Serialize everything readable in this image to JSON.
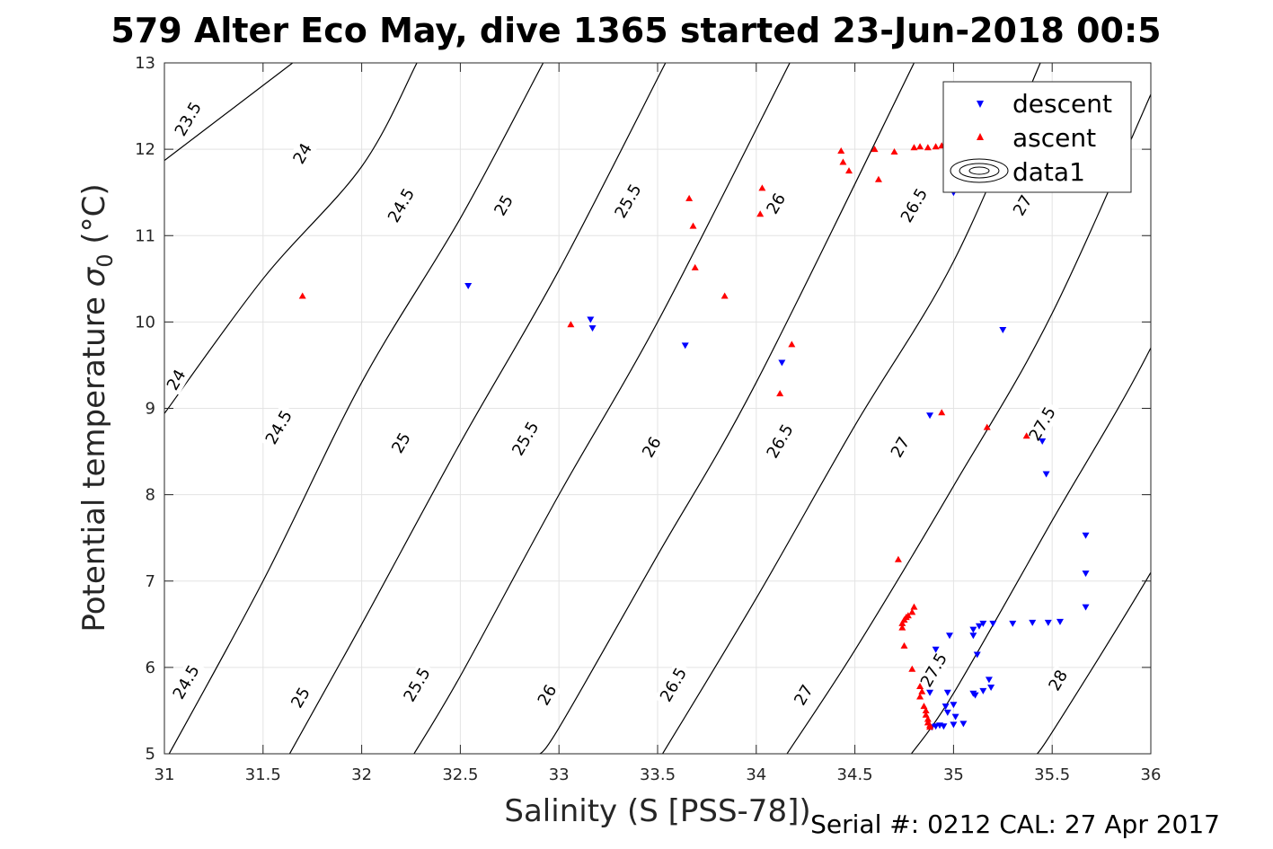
{
  "title": "579 Alter Eco May, dive 1365 started 23-Jun-2018 00:5",
  "footer": "Serial #: 0212  CAL: 27 Apr 2017",
  "chart_data": {
    "type": "scatter",
    "xlabel": "Salinity (S [PSS-78])",
    "ylabel_prefix": "Potential temperature ",
    "ylabel_symbol": "σ",
    "ylabel_subscript": "0",
    "ylabel_suffix": " (°C)",
    "xlim": [
      31,
      36
    ],
    "ylim": [
      5,
      13
    ],
    "xticks": [
      "31",
      "31.5",
      "32",
      "32.5",
      "33",
      "33.5",
      "34",
      "34.5",
      "35",
      "35.5",
      "36"
    ],
    "yticks": [
      "5",
      "6",
      "7",
      "8",
      "9",
      "10",
      "11",
      "12",
      "13"
    ],
    "grid": true,
    "legend_position": "top-right",
    "legend": [
      "descent",
      "ascent",
      "data1"
    ],
    "series": [
      {
        "name": "descent",
        "marker": "triangle-down",
        "color": "#0000ff",
        "points": [
          [
            32.54,
            10.42
          ],
          [
            33.16,
            10.03
          ],
          [
            33.17,
            9.93
          ],
          [
            33.64,
            9.73
          ],
          [
            34.13,
            9.53
          ],
          [
            35.25,
            9.91
          ],
          [
            34.88,
            8.92
          ],
          [
            35.45,
            8.62
          ],
          [
            35.47,
            8.24
          ],
          [
            35.67,
            7.53
          ],
          [
            35.67,
            7.09
          ],
          [
            35.67,
            6.7
          ],
          [
            35.0,
            11.5
          ],
          [
            35.4,
            6.52
          ],
          [
            35.48,
            6.52
          ],
          [
            35.54,
            6.53
          ],
          [
            35.2,
            6.51
          ],
          [
            35.3,
            6.51
          ],
          [
            35.15,
            6.51
          ],
          [
            35.13,
            6.48
          ],
          [
            35.1,
            6.44
          ],
          [
            35.1,
            6.37
          ],
          [
            34.98,
            6.37
          ],
          [
            35.12,
            6.15
          ],
          [
            34.91,
            6.21
          ],
          [
            35.18,
            5.86
          ],
          [
            35.19,
            5.77
          ],
          [
            35.15,
            5.73
          ],
          [
            35.1,
            5.7
          ],
          [
            35.11,
            5.68
          ],
          [
            34.97,
            5.71
          ],
          [
            34.88,
            5.71
          ],
          [
            35.0,
            5.57
          ],
          [
            34.97,
            5.48
          ],
          [
            35.01,
            5.43
          ],
          [
            34.96,
            5.55
          ],
          [
            35.05,
            5.35
          ],
          [
            35.0,
            5.34
          ],
          [
            34.93,
            5.33
          ],
          [
            34.95,
            5.32
          ],
          [
            34.89,
            5.31
          ],
          [
            34.91,
            5.32
          ]
        ]
      },
      {
        "name": "ascent",
        "marker": "triangle-up",
        "color": "#ff0000",
        "points": [
          [
            31.7,
            10.3
          ],
          [
            33.06,
            9.97
          ],
          [
            33.66,
            11.43
          ],
          [
            33.68,
            11.11
          ],
          [
            33.69,
            10.63
          ],
          [
            33.84,
            10.3
          ],
          [
            34.03,
            11.55
          ],
          [
            34.02,
            11.25
          ],
          [
            34.12,
            9.17
          ],
          [
            34.18,
            9.74
          ],
          [
            34.43,
            11.98
          ],
          [
            34.44,
            11.85
          ],
          [
            34.47,
            11.75
          ],
          [
            34.6,
            12.0
          ],
          [
            34.62,
            11.65
          ],
          [
            34.7,
            11.97
          ],
          [
            34.8,
            12.02
          ],
          [
            34.83,
            12.03
          ],
          [
            34.87,
            12.02
          ],
          [
            34.91,
            12.03
          ],
          [
            34.94,
            12.04
          ],
          [
            34.94,
            8.95
          ],
          [
            35.17,
            8.78
          ],
          [
            35.37,
            8.68
          ],
          [
            34.72,
            7.25
          ],
          [
            34.8,
            6.7
          ],
          [
            34.79,
            6.64
          ],
          [
            34.77,
            6.6
          ],
          [
            34.76,
            6.58
          ],
          [
            34.75,
            6.55
          ],
          [
            34.74,
            6.51
          ],
          [
            34.74,
            6.46
          ],
          [
            34.75,
            6.25
          ],
          [
            34.79,
            5.98
          ],
          [
            34.83,
            5.78
          ],
          [
            34.84,
            5.72
          ],
          [
            34.83,
            5.66
          ],
          [
            34.85,
            5.55
          ],
          [
            34.86,
            5.5
          ],
          [
            34.86,
            5.45
          ],
          [
            34.87,
            5.4
          ],
          [
            34.87,
            5.36
          ],
          [
            34.88,
            5.33
          ],
          [
            34.88,
            5.31
          ]
        ]
      }
    ],
    "contours": [
      {
        "level": "23.5",
        "points": [
          [
            31.0,
            11.87
          ],
          [
            31.65,
            13.0
          ]
        ]
      },
      {
        "level": "24",
        "points": [
          [
            31.0,
            8.94
          ],
          [
            31.5,
            10.5
          ],
          [
            32.0,
            11.8
          ],
          [
            32.28,
            13.0
          ]
        ]
      },
      {
        "level": "24.5",
        "points": [
          [
            31.0,
            4.9
          ],
          [
            31.5,
            7.0
          ],
          [
            32.0,
            9.3
          ],
          [
            32.5,
            11.2
          ],
          [
            32.92,
            13.0
          ]
        ]
      },
      {
        "level": "25",
        "points": [
          [
            31.63,
            4.98
          ],
          [
            32.0,
            6.5
          ],
          [
            32.5,
            8.6
          ],
          [
            33.0,
            10.6
          ],
          [
            33.54,
            13.0
          ]
        ]
      },
      {
        "level": "25.5",
        "points": [
          [
            32.26,
            4.98
          ],
          [
            32.5,
            5.9
          ],
          [
            33.0,
            8.0
          ],
          [
            33.5,
            10.0
          ],
          [
            34.17,
            13.0
          ]
        ]
      },
      {
        "level": "26",
        "points": [
          [
            32.89,
            4.98
          ],
          [
            33.0,
            5.3
          ],
          [
            33.5,
            7.3
          ],
          [
            34.0,
            9.3
          ],
          [
            34.8,
            13.0
          ]
        ]
      },
      {
        "level": "26.5",
        "points": [
          [
            33.52,
            4.98
          ],
          [
            34.0,
            6.8
          ],
          [
            34.5,
            8.8
          ],
          [
            35.0,
            10.7
          ],
          [
            35.44,
            13.0
          ]
        ]
      },
      {
        "level": "27",
        "points": [
          [
            34.15,
            4.98
          ],
          [
            34.5,
            6.2
          ],
          [
            35.0,
            8.1
          ],
          [
            35.5,
            10.1
          ],
          [
            36.07,
            13.0
          ]
        ]
      },
      {
        "level": "27.5",
        "points": [
          [
            34.78,
            4.98
          ],
          [
            35.0,
            5.7
          ],
          [
            35.5,
            7.7
          ],
          [
            36.0,
            9.7
          ],
          [
            36.5,
            12.2
          ]
        ]
      },
      {
        "level": "28",
        "points": [
          [
            35.41,
            4.98
          ],
          [
            35.5,
            5.25
          ],
          [
            36.0,
            7.1
          ],
          [
            36.25,
            8.2
          ]
        ]
      }
    ],
    "contour_labels": [
      {
        "text": "23.5",
        "x": 31.12,
        "y": 12.35
      },
      {
        "text": "24",
        "x": 31.7,
        "y": 11.95
      },
      {
        "text": "24.5",
        "x": 32.2,
        "y": 11.35
      },
      {
        "text": "25",
        "x": 32.72,
        "y": 11.35
      },
      {
        "text": "25.5",
        "x": 33.35,
        "y": 11.4
      },
      {
        "text": "26",
        "x": 34.1,
        "y": 11.37
      },
      {
        "text": "26.5",
        "x": 34.8,
        "y": 11.35
      },
      {
        "text": "27",
        "x": 35.35,
        "y": 11.35
      },
      {
        "text": "24",
        "x": 31.06,
        "y": 9.33
      },
      {
        "text": "24.5",
        "x": 31.58,
        "y": 8.78
      },
      {
        "text": "25",
        "x": 32.2,
        "y": 8.6
      },
      {
        "text": "25.5",
        "x": 32.83,
        "y": 8.65
      },
      {
        "text": "26",
        "x": 33.47,
        "y": 8.55
      },
      {
        "text": "26.5",
        "x": 34.12,
        "y": 8.62
      },
      {
        "text": "27",
        "x": 34.73,
        "y": 8.55
      },
      {
        "text": "27.5",
        "x": 35.45,
        "y": 8.82
      },
      {
        "text": "24.5",
        "x": 31.11,
        "y": 5.83
      },
      {
        "text": "25",
        "x": 31.69,
        "y": 5.65
      },
      {
        "text": "25.5",
        "x": 32.28,
        "y": 5.8
      },
      {
        "text": "26",
        "x": 32.94,
        "y": 5.68
      },
      {
        "text": "26.5",
        "x": 33.58,
        "y": 5.8
      },
      {
        "text": "27",
        "x": 34.24,
        "y": 5.68
      },
      {
        "text": "27.5",
        "x": 34.9,
        "y": 5.97
      },
      {
        "text": "28",
        "x": 35.53,
        "y": 5.85
      }
    ]
  }
}
